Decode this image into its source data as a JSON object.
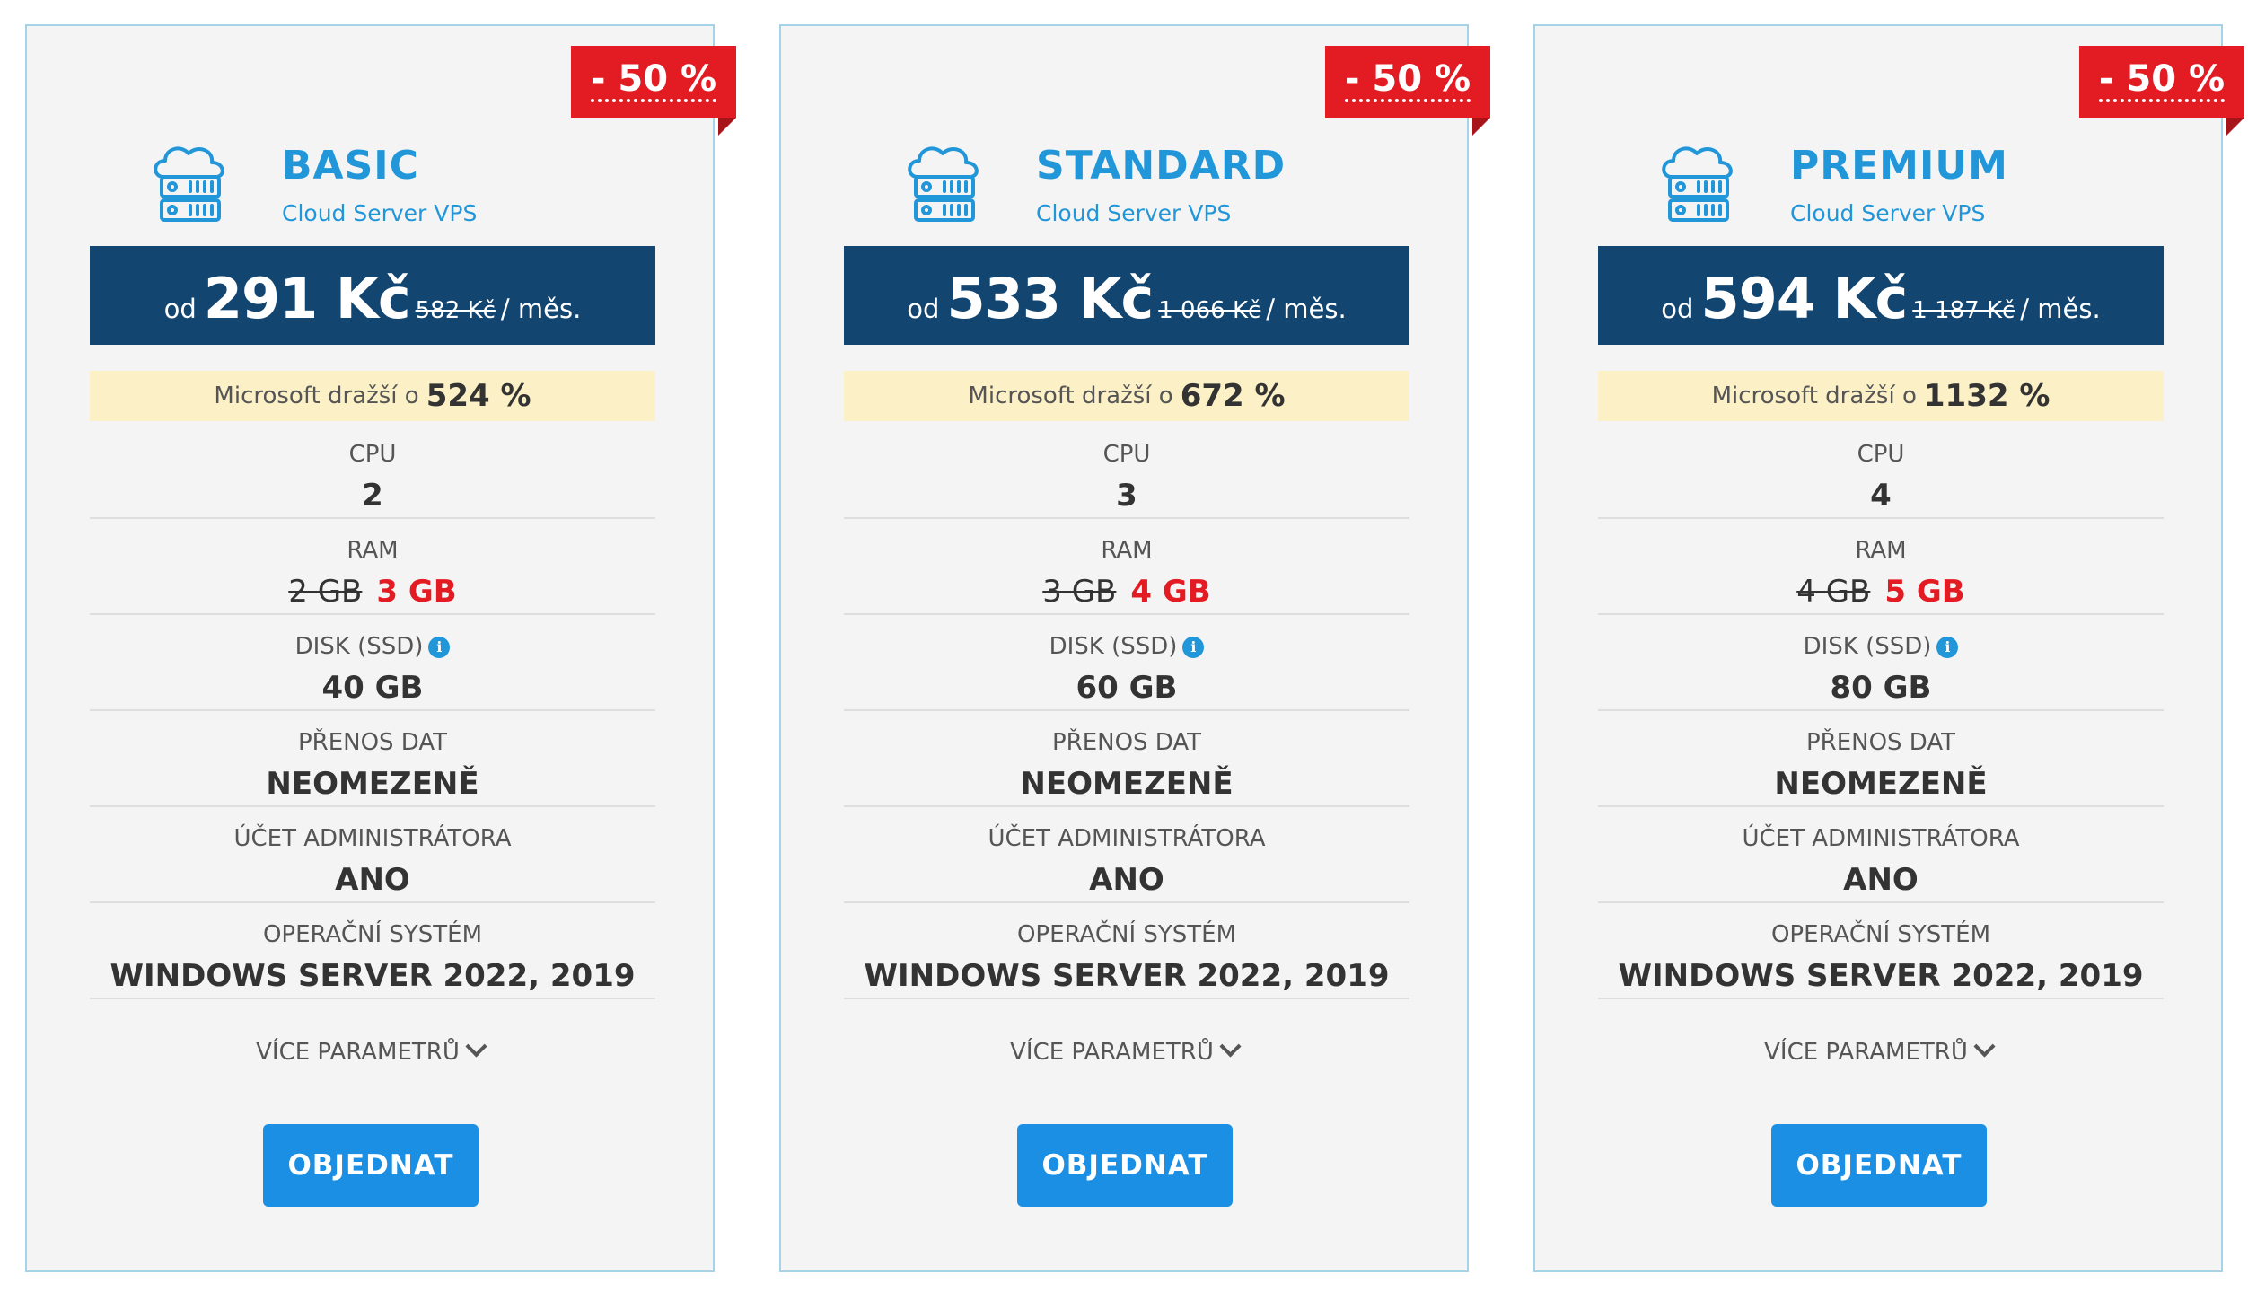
{
  "colors": {
    "accent_blue": "#2196d9",
    "price_bar": "#124570",
    "discount_red": "#e31b23",
    "highlight_yellow": "#fcf0c6",
    "button_blue": "#1a8fe3"
  },
  "plans": [
    {
      "discount": "- 50 %",
      "name": "BASIC",
      "subtitle": "Cloud Server VPS",
      "price_prefix": "od",
      "price": "291 Kč",
      "old_price": "582 Kč",
      "price_suffix": "/ měs.",
      "ms_text": "Microsoft dražší o",
      "ms_value": "524 %",
      "cpu_label": "CPU",
      "cpu_value": "2",
      "ram_label": "RAM",
      "ram_old": "2 GB",
      "ram_new": "3 GB",
      "disk_label": "DISK (SSD)",
      "disk_value": "40 GB",
      "transfer_label": "PŘENOS DAT",
      "transfer_value": "NEOMEZENĚ",
      "admin_label": "ÚČET ADMINISTRÁTORA",
      "admin_value": "ANO",
      "os_label": "OPERAČNÍ SYSTÉM",
      "os_value": "WINDOWS SERVER 2022, 2019",
      "more_label": "VÍCE PARAMETRŮ",
      "order_label": "OBJEDNAT"
    },
    {
      "discount": "- 50 %",
      "name": "STANDARD",
      "subtitle": "Cloud Server VPS",
      "price_prefix": "od",
      "price": "533 Kč",
      "old_price": "1 066 Kč",
      "price_suffix": "/ měs.",
      "ms_text": "Microsoft dražší o",
      "ms_value": "672 %",
      "cpu_label": "CPU",
      "cpu_value": "3",
      "ram_label": "RAM",
      "ram_old": "3 GB",
      "ram_new": "4 GB",
      "disk_label": "DISK (SSD)",
      "disk_value": "60 GB",
      "transfer_label": "PŘENOS DAT",
      "transfer_value": "NEOMEZENĚ",
      "admin_label": "ÚČET ADMINISTRÁTORA",
      "admin_value": "ANO",
      "os_label": "OPERAČNÍ SYSTÉM",
      "os_value": "WINDOWS SERVER 2022, 2019",
      "more_label": "VÍCE PARAMETRŮ",
      "order_label": "OBJEDNAT"
    },
    {
      "discount": "- 50 %",
      "name": "PREMIUM",
      "subtitle": "Cloud Server VPS",
      "price_prefix": "od",
      "price": "594 Kč",
      "old_price": "1 187 Kč",
      "price_suffix": "/ měs.",
      "ms_text": "Microsoft dražší o",
      "ms_value": "1132 %",
      "cpu_label": "CPU",
      "cpu_value": "4",
      "ram_label": "RAM",
      "ram_old": "4 GB",
      "ram_new": "5 GB",
      "disk_label": "DISK (SSD)",
      "disk_value": "80 GB",
      "transfer_label": "PŘENOS DAT",
      "transfer_value": "NEOMEZENĚ",
      "admin_label": "ÚČET ADMINISTRÁTORA",
      "admin_value": "ANO",
      "os_label": "OPERAČNÍ SYSTÉM",
      "os_value": "WINDOWS SERVER 2022, 2019",
      "more_label": "VÍCE PARAMETRŮ",
      "order_label": "OBJEDNAT"
    }
  ]
}
